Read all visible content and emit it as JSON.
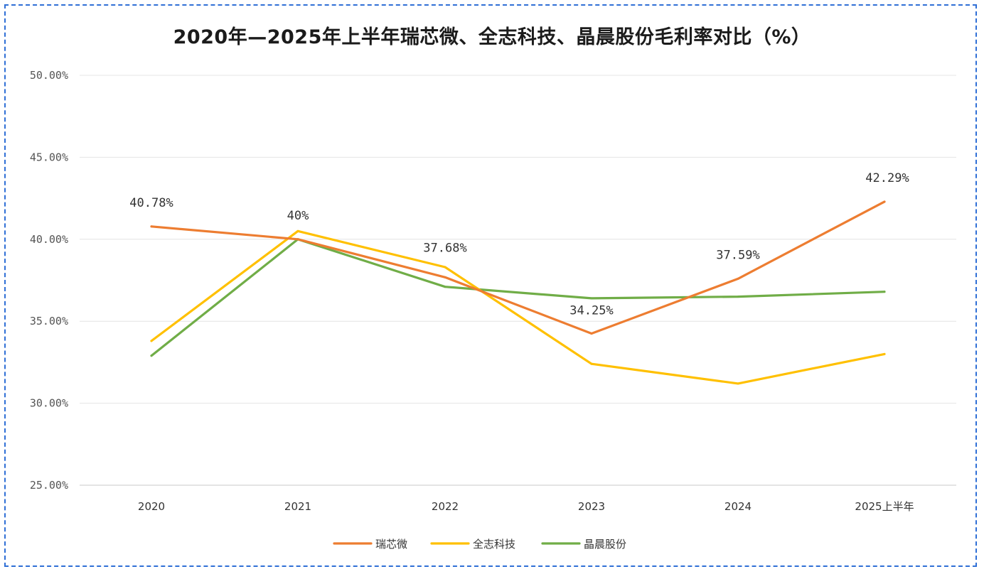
{
  "chart_data": {
    "type": "line",
    "title": "2020年—2025年上半年瑞芯微、全志科技、晶晨股份毛利率对比（%）",
    "xlabel": "",
    "ylabel": "",
    "categories": [
      "2020",
      "2021",
      "2022",
      "2023",
      "2024",
      "2025上半年"
    ],
    "y_ticks": [
      "25.00%",
      "30.00%",
      "35.00%",
      "40.00%",
      "45.00%",
      "50.00%"
    ],
    "ylim": [
      25,
      50
    ],
    "grid": "horizontal",
    "legend_position": "bottom",
    "series": [
      {
        "name": "瑞芯微",
        "color": "#ed7d31",
        "values": [
          40.78,
          40.0,
          37.68,
          34.25,
          37.59,
          42.29
        ]
      },
      {
        "name": "全志科技",
        "color": "#ffc000",
        "values": [
          33.8,
          40.5,
          38.3,
          32.4,
          31.2,
          33.0
        ]
      },
      {
        "name": "晶晨股份",
        "color": "#70ad47",
        "values": [
          32.9,
          40.0,
          37.1,
          36.4,
          36.5,
          36.8
        ]
      }
    ],
    "data_labels": [
      {
        "series": "瑞芯微",
        "index": 0,
        "text": "40.78%"
      },
      {
        "series": "瑞芯微",
        "index": 1,
        "text": "40%"
      },
      {
        "series": "瑞芯微",
        "index": 2,
        "text": "37.68%"
      },
      {
        "series": "瑞芯微",
        "index": 3,
        "text": "34.25%"
      },
      {
        "series": "瑞芯微",
        "index": 4,
        "text": "37.59%"
      },
      {
        "series": "瑞芯微",
        "index": 5,
        "text": "42.29%"
      }
    ]
  }
}
